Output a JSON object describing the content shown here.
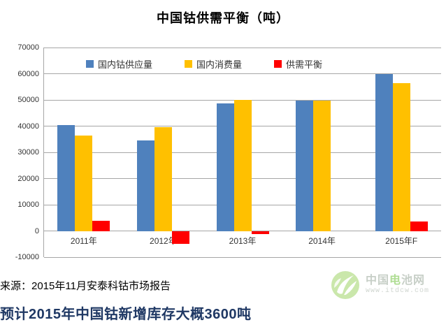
{
  "title": "中国钴供需平衡（吨）",
  "source": "来源：2015年11月安泰科钴市场报告",
  "headline": "预计2015年中国钴新增库存大概3600吨",
  "colors": {
    "supply": "#4F81BD",
    "consumption": "#FFC000",
    "balance": "#FF0000",
    "gridline": "#A6A6A6",
    "headline_text": "#1F3864",
    "logo_green": "#6fc23c"
  },
  "chart_data": {
    "type": "bar",
    "title": "中国钴供需平衡（吨）",
    "categories": [
      "2011年",
      "2012年",
      "2013年",
      "2014年",
      "2015年F"
    ],
    "series": [
      {
        "name": "国内钴供应量",
        "color": "#4F81BD",
        "values": [
          40500,
          34500,
          48800,
          49700,
          60000
        ]
      },
      {
        "name": "国内消费量",
        "color": "#FFC000",
        "values": [
          36500,
          39500,
          50000,
          49700,
          56400
        ]
      },
      {
        "name": "供需平衡",
        "color": "#FF0000",
        "values": [
          4000,
          -5000,
          -1200,
          0,
          3600
        ]
      }
    ],
    "xlabel": "",
    "ylabel": "",
    "ylim": [
      -10000,
      70000
    ],
    "y_ticks": [
      70000,
      60000,
      50000,
      40000,
      30000,
      20000,
      10000,
      0,
      -10000
    ],
    "grid": true,
    "legend_position": "top"
  },
  "logo": {
    "name_prefix": "中国",
    "name_highlight": "电",
    "name_suffix": "池网",
    "url": "www.itdcw.com"
  }
}
